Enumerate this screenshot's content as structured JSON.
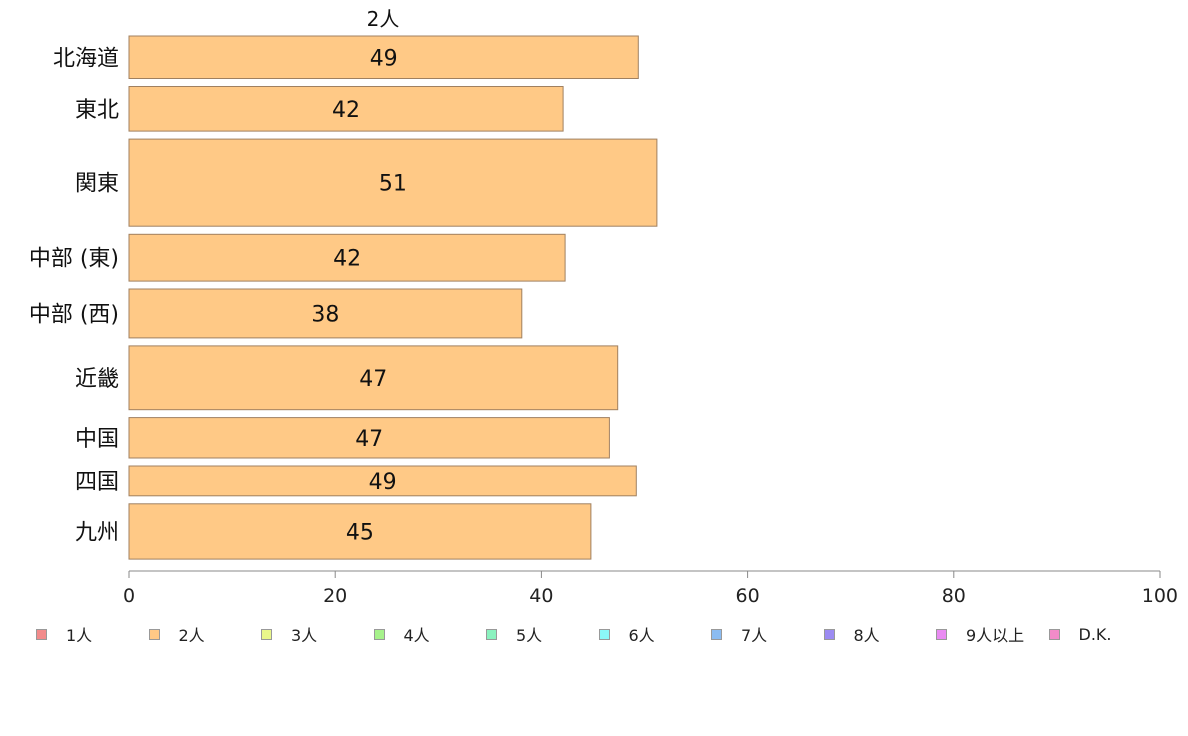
{
  "chart_data": {
    "type": "bar",
    "orientation": "horizontal",
    "title": "2人",
    "categories": [
      "北海道",
      "東北",
      "関東",
      "中部 (東)",
      "中部 (西)",
      "近畿",
      "中国",
      "四国",
      "九州"
    ],
    "series": [
      {
        "name": "2人",
        "values": [
          49.4,
          42.1,
          51.2,
          42.3,
          38.1,
          47.4,
          46.6,
          49.2,
          44.8
        ],
        "data_labels": [
          "49",
          "42",
          "51",
          "42",
          "38",
          "47",
          "47",
          "49",
          "45"
        ]
      }
    ],
    "relative_bar_thickness": [
      1.0,
      1.05,
      2.05,
      1.1,
      1.15,
      1.5,
      0.95,
      0.7,
      1.3
    ],
    "xlim": [
      0,
      100
    ],
    "xticks": [
      0,
      20,
      40,
      60,
      80,
      100
    ],
    "xlabel": "",
    "ylabel": "",
    "grid": false,
    "legend_position": "bottom",
    "legend": [
      "1人",
      "2人",
      "3人",
      "4人",
      "5人",
      "6人",
      "7人",
      "8人",
      "9人以上",
      "D.K."
    ],
    "legend_colors": [
      "#f28b8b",
      "#ffc986",
      "#e9f78a",
      "#a6f28b",
      "#8bf2bf",
      "#8bf7f7",
      "#8bbcf2",
      "#9c8bf2",
      "#e98bf2",
      "#f28bc9"
    ],
    "bar_color": "#ffc986",
    "bar_border_color": "#a08060"
  }
}
